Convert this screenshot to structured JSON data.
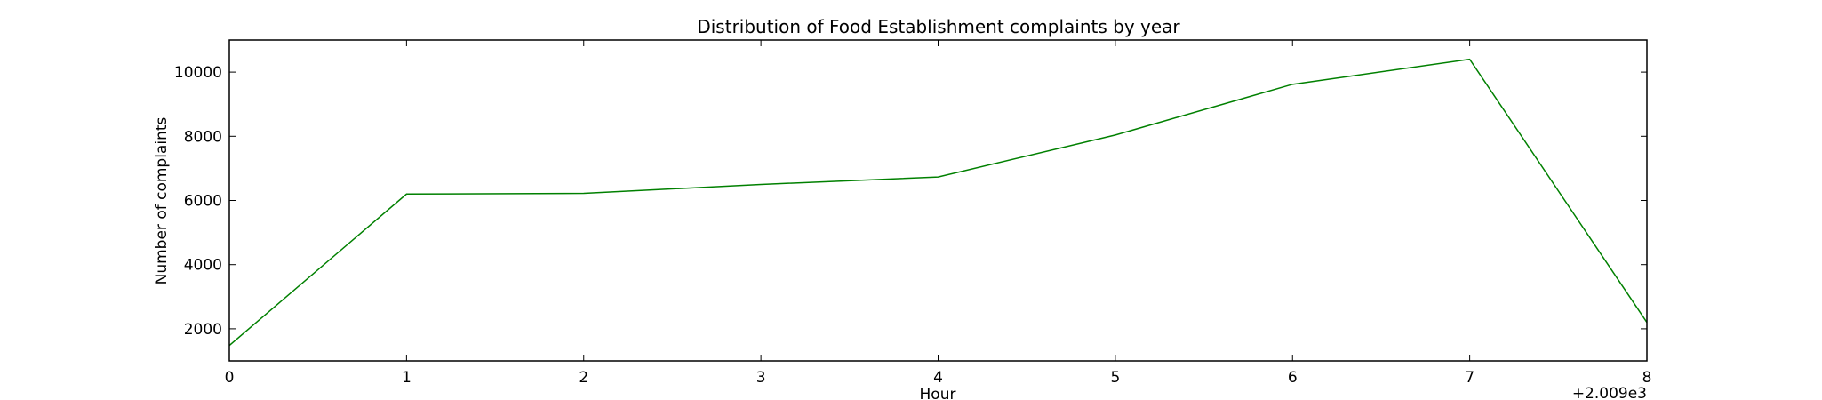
{
  "chart_data": {
    "type": "line",
    "title": "Distribution of  Food Establishment complaints by year",
    "xlabel": "Hour",
    "ylabel": "Number of complaints",
    "x_offset_label": "+2.009e3",
    "xlim": [
      0,
      8
    ],
    "ylim": [
      1000,
      11000
    ],
    "x_ticks": [
      0,
      1,
      2,
      3,
      4,
      5,
      6,
      7,
      8
    ],
    "y_ticks": [
      2000,
      4000,
      6000,
      8000,
      10000
    ],
    "grid": false,
    "legend": "none",
    "series": [
      {
        "color": "#008000",
        "x": [
          0,
          1,
          2,
          3,
          4,
          5,
          6,
          7,
          8
        ],
        "values": [
          1480,
          6200,
          6220,
          6500,
          6730,
          8040,
          9620,
          10400,
          2200
        ]
      }
    ]
  }
}
